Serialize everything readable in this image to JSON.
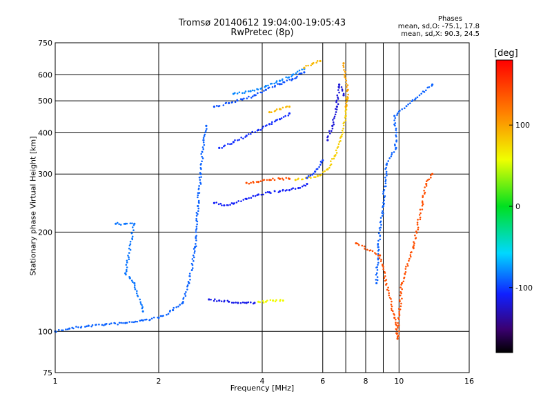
{
  "header": {
    "title_line1": "Tromsø 20140612 19:04:00-19:05:43",
    "title_line2": "RwPretec (8p)",
    "stats_title": "Phases",
    "stats_o": "mean, sd,O: -75.1, 17.8",
    "stats_x": "mean, sd,X:  90.3, 24.5"
  },
  "colorbar": {
    "unit": "[deg]",
    "range": [
      -180,
      180
    ],
    "ticks": [
      {
        "value": 100,
        "label": "100"
      },
      {
        "value": 0,
        "label": "0"
      },
      {
        "value": -100,
        "label": "-100"
      }
    ]
  },
  "chart_data": {
    "type": "scatter",
    "title": "Tromsø 20140612 19:04:00-19:05:43",
    "subtitle": "RwPretec (8p)",
    "xlabel": "Frequency [MHz]",
    "ylabel": "Stationary phase Virtual Height [km]",
    "x_scale": "log",
    "y_scale": "log",
    "xlim": [
      1,
      16
    ],
    "ylim": [
      75,
      750
    ],
    "x_ticks": [
      {
        "value": 1,
        "label": "1"
      },
      {
        "value": 2,
        "label": "2"
      },
      {
        "value": 4,
        "label": "4"
      },
      {
        "value": 6,
        "label": "6"
      },
      {
        "value": 8,
        "label": "8"
      },
      {
        "value": 10,
        "label": "10"
      },
      {
        "value": 16,
        "label": "16"
      }
    ],
    "x_minor": [
      7,
      9
    ],
    "y_ticks": [
      {
        "value": 75,
        "label": "75"
      },
      {
        "value": 100,
        "label": "100"
      },
      {
        "value": 200,
        "label": "200"
      },
      {
        "value": 300,
        "label": "300"
      },
      {
        "value": 400,
        "label": "400"
      },
      {
        "value": 500,
        "label": "500"
      },
      {
        "value": 600,
        "label": "600"
      },
      {
        "value": 750,
        "label": "750"
      }
    ],
    "grid": true,
    "traces": [
      {
        "phase": -90,
        "points": [
          [
            1.0,
            100
          ],
          [
            1.1,
            102
          ],
          [
            1.25,
            104
          ],
          [
            1.4,
            105
          ],
          [
            1.6,
            106
          ],
          [
            1.8,
            108
          ],
          [
            2.0,
            110
          ],
          [
            2.2,
            116
          ],
          [
            2.35,
            122
          ],
          [
            2.45,
            140
          ],
          [
            2.55,
            180
          ],
          [
            2.6,
            240
          ],
          [
            2.65,
            300
          ],
          [
            2.7,
            380
          ],
          [
            2.75,
            420
          ]
        ]
      },
      {
        "phase": -115,
        "points": [
          [
            2.8,
            125
          ],
          [
            3.0,
            124
          ],
          [
            3.2,
            123
          ],
          [
            3.4,
            122
          ],
          [
            3.6,
            122
          ],
          [
            3.8,
            122
          ]
        ]
      },
      {
        "phase": 60,
        "points": [
          [
            3.9,
            123
          ],
          [
            4.1,
            123
          ],
          [
            4.3,
            124
          ],
          [
            4.6,
            124
          ]
        ]
      },
      {
        "phase": -110,
        "points": [
          [
            2.9,
            245
          ],
          [
            3.1,
            241
          ],
          [
            3.3,
            244
          ],
          [
            3.6,
            252
          ],
          [
            3.9,
            260
          ],
          [
            4.2,
            264
          ],
          [
            4.5,
            266
          ],
          [
            4.8,
            268
          ],
          [
            5.1,
            272
          ],
          [
            5.4,
            280
          ]
        ]
      },
      {
        "phase": 140,
        "points": [
          [
            3.6,
            282
          ],
          [
            3.9,
            284
          ],
          [
            4.2,
            288
          ],
          [
            4.5,
            290
          ],
          [
            4.8,
            290
          ]
        ]
      },
      {
        "phase": 80,
        "points": [
          [
            5.0,
            288
          ],
          [
            5.4,
            292
          ],
          [
            5.8,
            296
          ],
          [
            6.2,
            310
          ],
          [
            6.5,
            340
          ],
          [
            6.8,
            390
          ],
          [
            7.0,
            450
          ],
          [
            7.1,
            510
          ]
        ]
      },
      {
        "phase": -100,
        "points": [
          [
            5.4,
            292
          ],
          [
            5.7,
            305
          ],
          [
            6.0,
            330
          ]
        ]
      },
      {
        "phase": -105,
        "points": [
          [
            3.0,
            360
          ],
          [
            3.3,
            375
          ],
          [
            3.6,
            392
          ],
          [
            3.9,
            408
          ],
          [
            4.2,
            425
          ],
          [
            4.5,
            440
          ],
          [
            4.8,
            458
          ]
        ]
      },
      {
        "phase": 90,
        "points": [
          [
            4.2,
            462
          ],
          [
            4.5,
            472
          ],
          [
            4.8,
            480
          ]
        ]
      },
      {
        "phase": -95,
        "points": [
          [
            2.9,
            480
          ],
          [
            3.2,
            492
          ],
          [
            3.5,
            505
          ],
          [
            3.8,
            520
          ],
          [
            4.1,
            540
          ],
          [
            4.5,
            562
          ],
          [
            4.9,
            582
          ],
          [
            5.3,
            610
          ]
        ]
      },
      {
        "phase": -80,
        "points": [
          [
            3.3,
            525
          ],
          [
            3.7,
            535
          ],
          [
            4.1,
            555
          ],
          [
            4.5,
            575
          ],
          [
            4.9,
            600
          ],
          [
            5.3,
            625
          ]
        ]
      },
      {
        "phase": 90,
        "points": [
          [
            5.3,
            630
          ],
          [
            5.6,
            648
          ],
          [
            5.9,
            660
          ]
        ]
      },
      {
        "phase": -85,
        "points": [
          [
            1.5,
            212
          ],
          [
            1.6,
            212
          ],
          [
            1.7,
            212
          ],
          [
            1.6,
            150
          ],
          [
            1.65,
            145
          ],
          [
            1.7,
            140
          ],
          [
            1.8,
            115
          ]
        ]
      },
      {
        "phase": -120,
        "points": [
          [
            6.2,
            380
          ],
          [
            6.4,
            420
          ],
          [
            6.6,
            480
          ],
          [
            6.7,
            560
          ],
          [
            6.9,
            520
          ]
        ]
      },
      {
        "phase": 100,
        "points": [
          [
            6.9,
            650
          ],
          [
            6.95,
            600
          ],
          [
            7.1,
            540
          ],
          [
            7.0,
            480
          ]
        ]
      },
      {
        "phase": -90,
        "points": [
          [
            8.6,
            140
          ],
          [
            8.7,
            180
          ],
          [
            9.0,
            240
          ],
          [
            9.2,
            320
          ],
          [
            9.8,
            360
          ],
          [
            9.7,
            450
          ],
          [
            12.5,
            560
          ]
        ]
      },
      {
        "phase": 140,
        "points": [
          [
            7.5,
            185
          ],
          [
            8.8,
            170
          ],
          [
            9.7,
            110
          ],
          [
            9.9,
            95
          ],
          [
            10.2,
            140
          ],
          [
            11.0,
            180
          ],
          [
            12.0,
            280
          ],
          [
            12.5,
            300
          ]
        ]
      }
    ]
  }
}
